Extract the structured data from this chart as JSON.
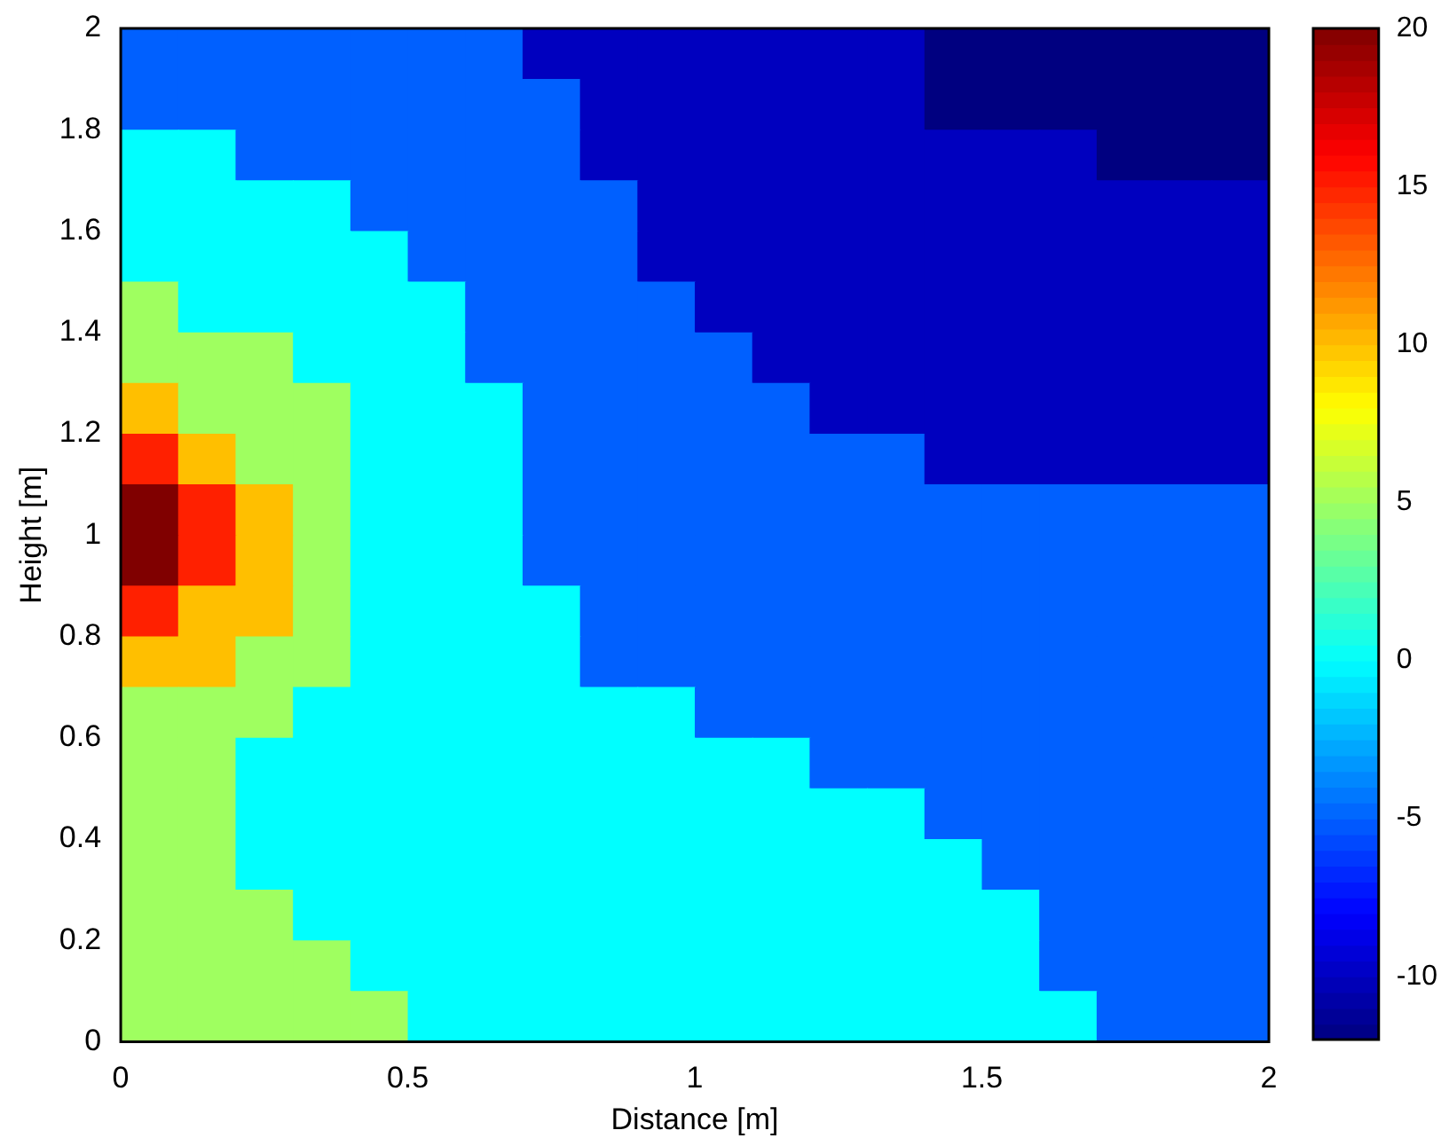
{
  "chart_data": {
    "type": "heatmap",
    "xlabel": "Distance [m]",
    "ylabel": "Height [m]",
    "cells": [
      [
        -5,
        -5,
        -5,
        -5,
        -5,
        -5,
        -5,
        -10,
        -10,
        -10,
        -10,
        -10,
        -10,
        -10,
        -12,
        -12,
        -12,
        -12,
        -12,
        -12
      ],
      [
        -5,
        -5,
        -5,
        -5,
        -5,
        -5,
        -5,
        -5,
        -10,
        -10,
        -10,
        -10,
        -10,
        -10,
        -12,
        -12,
        -12,
        -12,
        -12,
        -12
      ],
      [
        0,
        0,
        -5,
        -5,
        -5,
        -5,
        -5,
        -5,
        -10,
        -10,
        -10,
        -10,
        -10,
        -10,
        -10,
        -10,
        -10,
        -12,
        -12,
        -12
      ],
      [
        0,
        0,
        0,
        0,
        -5,
        -5,
        -5,
        -5,
        -5,
        -10,
        -10,
        -10,
        -10,
        -10,
        -10,
        -10,
        -10,
        -10,
        -10,
        -10
      ],
      [
        0,
        0,
        0,
        0,
        0,
        -5,
        -5,
        -5,
        -5,
        -10,
        -10,
        -10,
        -10,
        -10,
        -10,
        -10,
        -10,
        -10,
        -10,
        -10
      ],
      [
        5,
        0,
        0,
        0,
        0,
        0,
        -5,
        -5,
        -5,
        -5,
        -10,
        -10,
        -10,
        -10,
        -10,
        -10,
        -10,
        -10,
        -10,
        -10
      ],
      [
        5,
        5,
        5,
        0,
        0,
        0,
        -5,
        -5,
        -5,
        -5,
        -5,
        -10,
        -10,
        -10,
        -10,
        -10,
        -10,
        -10,
        -10,
        -10
      ],
      [
        10,
        5,
        5,
        5,
        0,
        0,
        0,
        -5,
        -5,
        -5,
        -5,
        -5,
        -10,
        -10,
        -10,
        -10,
        -10,
        -10,
        -10,
        -10
      ],
      [
        15,
        10,
        5,
        5,
        0,
        0,
        0,
        -5,
        -5,
        -5,
        -5,
        -5,
        -5,
        -5,
        -10,
        -10,
        -10,
        -10,
        -10,
        -10
      ],
      [
        20,
        15,
        10,
        5,
        0,
        0,
        0,
        -5,
        -5,
        -5,
        -5,
        -5,
        -5,
        -5,
        -5,
        -5,
        -5,
        -5,
        -5,
        -5
      ],
      [
        20,
        15,
        10,
        5,
        0,
        0,
        0,
        -5,
        -5,
        -5,
        -5,
        -5,
        -5,
        -5,
        -5,
        -5,
        -5,
        -5,
        -5,
        -5
      ],
      [
        15,
        10,
        10,
        5,
        0,
        0,
        0,
        0,
        -5,
        -5,
        -5,
        -5,
        -5,
        -5,
        -5,
        -5,
        -5,
        -5,
        -5,
        -5
      ],
      [
        10,
        10,
        5,
        5,
        0,
        0,
        0,
        0,
        -5,
        -5,
        -5,
        -5,
        -5,
        -5,
        -5,
        -5,
        -5,
        -5,
        -5,
        -5
      ],
      [
        5,
        5,
        5,
        0,
        0,
        0,
        0,
        0,
        0,
        0,
        -5,
        -5,
        -5,
        -5,
        -5,
        -5,
        -5,
        -5,
        -5,
        -5
      ],
      [
        5,
        5,
        0,
        0,
        0,
        0,
        0,
        0,
        0,
        0,
        0,
        0,
        -5,
        -5,
        -5,
        -5,
        -5,
        -5,
        -5,
        -5
      ],
      [
        5,
        5,
        0,
        0,
        0,
        0,
        0,
        0,
        0,
        0,
        0,
        0,
        0,
        0,
        -5,
        -5,
        -5,
        -5,
        -5,
        -5
      ],
      [
        5,
        5,
        0,
        0,
        0,
        0,
        0,
        0,
        0,
        0,
        0,
        0,
        0,
        0,
        0,
        -5,
        -5,
        -5,
        -5,
        -5
      ],
      [
        5,
        5,
        5,
        0,
        0,
        0,
        0,
        0,
        0,
        0,
        0,
        0,
        0,
        0,
        0,
        0,
        -5,
        -5,
        -5,
        -5
      ],
      [
        5,
        5,
        5,
        5,
        0,
        0,
        0,
        0,
        0,
        0,
        0,
        0,
        0,
        0,
        0,
        0,
        -5,
        -5,
        -5,
        -5
      ],
      [
        5,
        5,
        5,
        5,
        5,
        0,
        0,
        0,
        0,
        0,
        0,
        0,
        0,
        0,
        0,
        0,
        0,
        -5,
        -5,
        -5
      ]
    ],
    "clim": [
      -12,
      20
    ],
    "cticks": [
      -10,
      -5,
      0,
      5,
      10,
      15,
      20
    ],
    "xlim": [
      0,
      2
    ],
    "xticks": [
      0,
      0.5,
      1,
      1.5,
      2
    ],
    "ylim": [
      0,
      2
    ],
    "yticks": [
      0,
      0.2,
      0.4,
      0.6,
      0.8,
      1,
      1.2,
      1.4,
      1.6,
      1.8,
      2
    ]
  }
}
